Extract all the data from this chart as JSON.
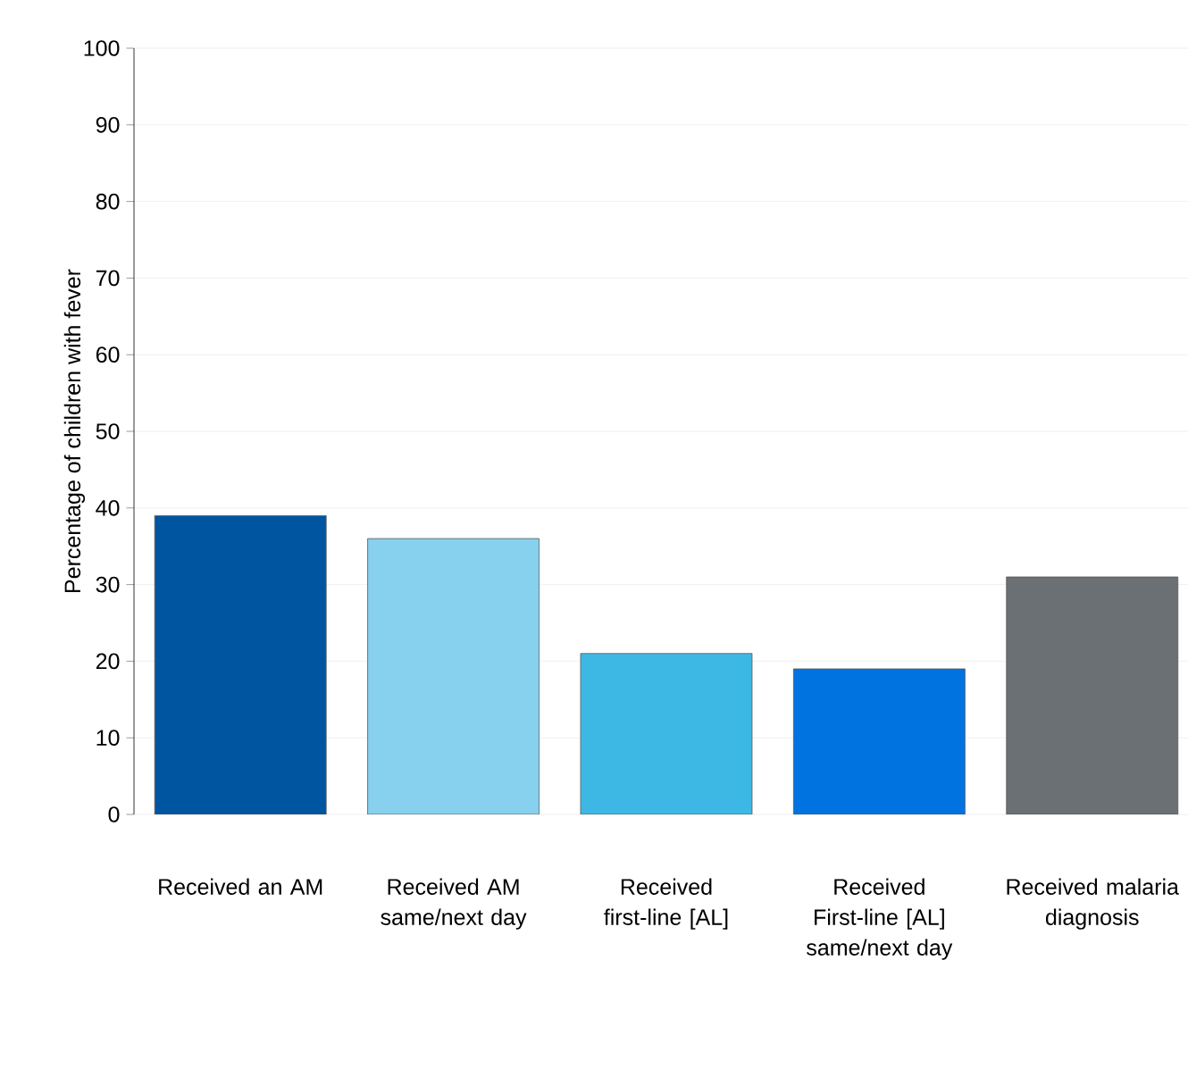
{
  "chart_data": {
    "type": "bar",
    "ylabel": "Percentage of children with fever",
    "categories": [
      "Received an AM",
      "Received AM same/next day",
      "Received first-line [AL]",
      "Received First-line [AL] same/next day",
      "Received malaria diagnosis"
    ],
    "values": [
      39,
      36,
      21,
      19,
      31
    ],
    "colors": [
      "#0055a0",
      "#87d0ee",
      "#3db8e4",
      "#0073e0",
      "#6a7073"
    ],
    "ylim": [
      0,
      100
    ],
    "yticks": [
      0,
      10,
      20,
      30,
      40,
      50,
      60,
      70,
      80,
      90,
      100
    ],
    "grid": "y"
  }
}
